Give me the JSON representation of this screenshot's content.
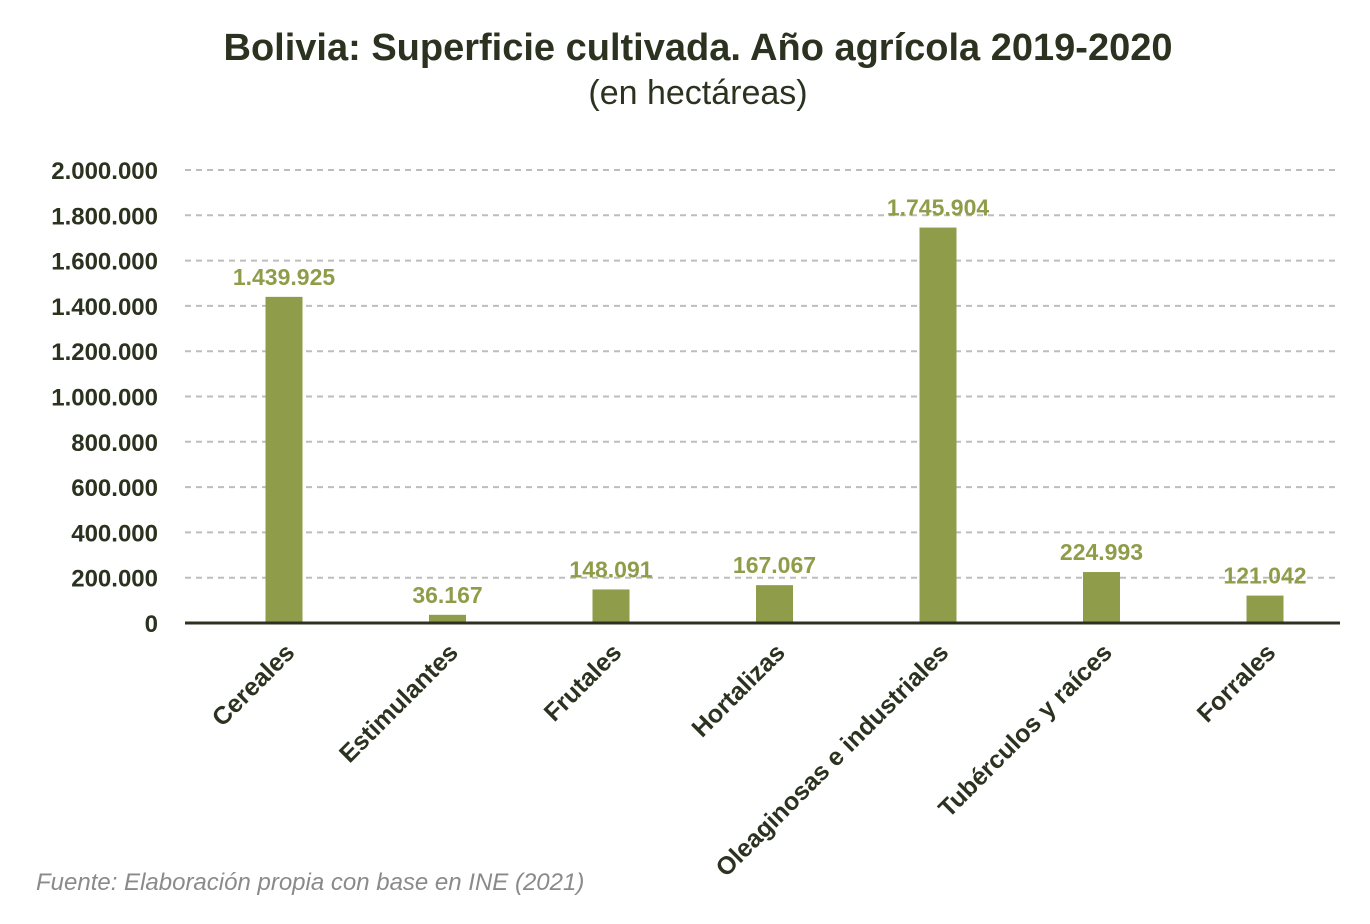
{
  "chart_data": {
    "type": "bar",
    "title": "Bolivia: Superficie cultivada. Año agrícola 2019-2020",
    "subtitle": "(en hectáreas)",
    "categories": [
      "Cereales",
      "Estimulantes",
      "Frutales",
      "Hortalizas",
      "Oleaginosas e industriales",
      "Tubérculos y raíces",
      "Forrales"
    ],
    "values": [
      1439925,
      36167,
      148091,
      167067,
      1745904,
      224993,
      121042
    ],
    "value_labels": [
      "1.439.925",
      "36.167",
      "148.091",
      "167.067",
      "1.745.904",
      "224.993",
      "121.042"
    ],
    "ylim": [
      0,
      2000000
    ],
    "yticks": [
      0,
      200000,
      400000,
      600000,
      800000,
      1000000,
      1200000,
      1400000,
      1600000,
      1800000,
      2000000
    ],
    "ytick_labels": [
      "0",
      "200.000",
      "400.000",
      "600.000",
      "800.000",
      "1.000.000",
      "1.200.000",
      "1.400.000",
      "1.600.000",
      "1.800.000",
      "2.000.000"
    ],
    "xlabel": "",
    "ylabel": "",
    "grid": true,
    "bar_color": "#8f9d4a",
    "label_color": "#8f9d4a"
  },
  "footer": {
    "source": "Fuente: Elaboración propia con base en INE (2021)"
  }
}
